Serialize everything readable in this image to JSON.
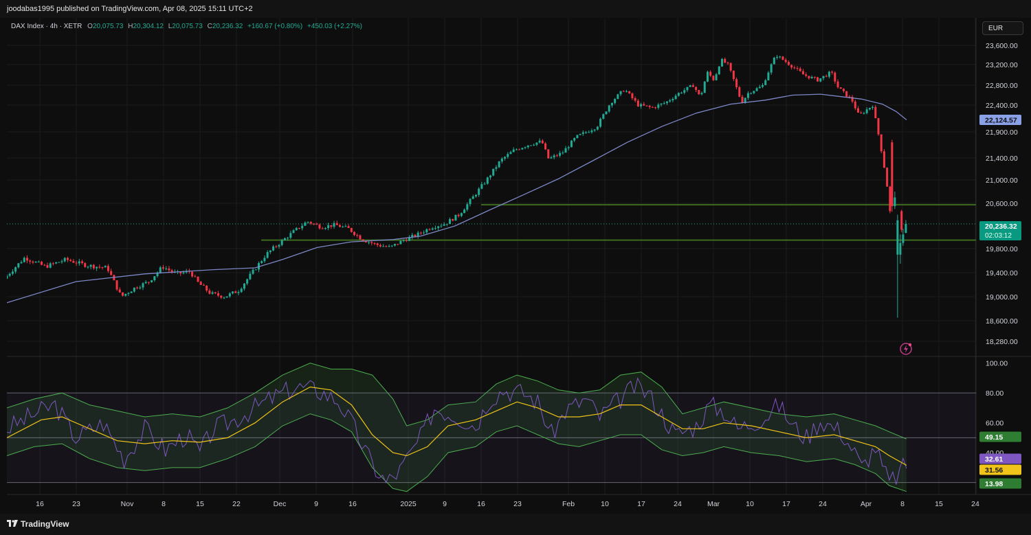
{
  "header": {
    "published_text": "joodabas1995 published on TradingView.com, Apr 08, 2025 15:11 UTC+2"
  },
  "legend": {
    "symbol": "DAX Index · 4h · XETR",
    "open_label": "O",
    "open": "20,075.73",
    "high_label": "H",
    "high": "20,304.12",
    "low_label": "L",
    "low": "20,075.73",
    "close_label": "C",
    "close": "20,236.32",
    "change": "+160.67 (+0.80%)",
    "change2": "+450.03 (+2.27%)"
  },
  "currency_button": "EUR",
  "footer": {
    "logo_text": "TradingView"
  },
  "colors": {
    "up": "#22ab94",
    "down": "#f23645",
    "ma": "#7e88c8",
    "rsi": "#7e57c2",
    "rsi_ma": "#f0c419",
    "band": "#4caf50",
    "support": "#3d6b1f"
  },
  "chart_data": [
    {
      "type": "candlestick",
      "title": "DAX Index · 4h · XETR",
      "x_tick_labels": [
        "16",
        "23",
        "Nov",
        "8",
        "15",
        "22",
        "Dec",
        "9",
        "16",
        "2025",
        "9",
        "16",
        "23",
        "Feb",
        "10",
        "17",
        "24",
        "Mar",
        "10",
        "17",
        "24",
        "Apr",
        "8",
        "15",
        "24"
      ],
      "y_tick_labels": [
        "23,600.00",
        "23,200.00",
        "22,800.00",
        "22,400.00",
        "21,900.00",
        "21,400.00",
        "21,000.00",
        "20,600.00",
        "19,800.00",
        "19,400.00",
        "19,000.00",
        "18,600.00",
        "18,280.00"
      ],
      "y_ticks": [
        23600,
        23200,
        22800,
        22400,
        21900,
        21400,
        21000,
        20600,
        19800,
        19400,
        19000,
        18600,
        18280
      ],
      "price_badges": [
        {
          "label": "22,124.57",
          "value": 22124.57,
          "kind": "moving-average"
        },
        {
          "label": "20,236.32",
          "value": 20236.32,
          "kind": "last-price"
        }
      ],
      "countdown": "02:03:12",
      "horizontal_levels": [
        20575,
        19950
      ],
      "price_path": [
        [
          0,
          19300
        ],
        [
          3,
          19650
        ],
        [
          6,
          19500
        ],
        [
          9,
          19620
        ],
        [
          12,
          19520
        ],
        [
          15,
          19480
        ],
        [
          17,
          19000
        ],
        [
          19,
          19150
        ],
        [
          21,
          19250
        ],
        [
          23,
          19500
        ],
        [
          25,
          19380
        ],
        [
          27,
          19420
        ],
        [
          28,
          19250
        ],
        [
          30,
          19050
        ],
        [
          32,
          19000
        ],
        [
          34,
          19100
        ],
        [
          36,
          19400
        ],
        [
          38,
          19700
        ],
        [
          40,
          19900
        ],
        [
          42,
          20100
        ],
        [
          44,
          20280
        ],
        [
          46,
          20180
        ],
        [
          48,
          20220
        ],
        [
          50,
          20150
        ],
        [
          52,
          19960
        ],
        [
          54,
          19870
        ],
        [
          56,
          19820
        ],
        [
          58,
          19950
        ],
        [
          60,
          20050
        ],
        [
          62,
          20180
        ],
        [
          64,
          20240
        ],
        [
          66,
          20400
        ],
        [
          68,
          20700
        ],
        [
          70,
          21000
        ],
        [
          72,
          21350
        ],
        [
          74,
          21550
        ],
        [
          76,
          21650
        ],
        [
          78,
          21720
        ],
        [
          79,
          21380
        ],
        [
          81,
          21500
        ],
        [
          83,
          21800
        ],
        [
          86,
          22000
        ],
        [
          88,
          22450
        ],
        [
          90,
          22720
        ],
        [
          92,
          22400
        ],
        [
          94,
          22350
        ],
        [
          96,
          22450
        ],
        [
          98,
          22650
        ],
        [
          100,
          22800
        ],
        [
          101,
          22550
        ],
        [
          102,
          23050
        ],
        [
          103,
          22900
        ],
        [
          104,
          23300
        ],
        [
          105,
          23200
        ],
        [
          106,
          22850
        ],
        [
          107,
          22450
        ],
        [
          108,
          22650
        ],
        [
          110,
          22780
        ],
        [
          111,
          23100
        ],
        [
          112,
          23400
        ],
        [
          114,
          23200
        ],
        [
          116,
          23000
        ],
        [
          118,
          22900
        ],
        [
          120,
          23050
        ],
        [
          121,
          22750
        ],
        [
          123,
          22500
        ],
        [
          124,
          22200
        ],
        [
          126,
          22400
        ],
        [
          127,
          21750
        ],
        [
          128,
          21000
        ],
        [
          128.5,
          20500
        ],
        [
          129.2,
          18700
        ],
        [
          129.7,
          19900
        ],
        [
          130.5,
          20236
        ]
      ],
      "moving_average_path": [
        [
          0,
          18900
        ],
        [
          10,
          19250
        ],
        [
          20,
          19380
        ],
        [
          30,
          19450
        ],
        [
          36,
          19480
        ],
        [
          40,
          19620
        ],
        [
          45,
          19820
        ],
        [
          50,
          19920
        ],
        [
          56,
          19960
        ],
        [
          60,
          20020
        ],
        [
          65,
          20200
        ],
        [
          70,
          20480
        ],
        [
          75,
          20750
        ],
        [
          80,
          21020
        ],
        [
          85,
          21350
        ],
        [
          90,
          21700
        ],
        [
          95,
          22000
        ],
        [
          100,
          22250
        ],
        [
          105,
          22420
        ],
        [
          110,
          22500
        ],
        [
          114,
          22600
        ],
        [
          118,
          22620
        ],
        [
          121,
          22570
        ],
        [
          124,
          22520
        ],
        [
          127,
          22420
        ],
        [
          129,
          22280
        ],
        [
          130.5,
          22124.57
        ]
      ]
    },
    {
      "type": "line",
      "title": "RSI",
      "y_tick_labels": [
        "100.00",
        "80.00",
        "60.00",
        "40.00",
        "20.00"
      ],
      "y_ticks": [
        100,
        80,
        60,
        40,
        20
      ],
      "ylim": [
        12,
        104
      ],
      "badges": [
        {
          "label": "49.15",
          "value": 49.15,
          "series": "upper band"
        },
        {
          "label": "32.61",
          "value": 32.61,
          "series": "rsi"
        },
        {
          "label": "31.56",
          "value": 31.56,
          "series": "rsi ma"
        },
        {
          "label": "13.98",
          "value": 13.98,
          "series": "lower band"
        }
      ],
      "levels": [
        80,
        50,
        20
      ],
      "series": [
        {
          "key": "rsi",
          "values": [
            [
              0,
              56
            ],
            [
              4,
              66
            ],
            [
              7,
              72
            ],
            [
              10,
              50
            ],
            [
              14,
              60
            ],
            [
              17,
              36
            ],
            [
              20,
              56
            ],
            [
              23,
              42
            ],
            [
              26,
              52
            ],
            [
              28,
              40
            ],
            [
              30,
              56
            ],
            [
              33,
              62
            ],
            [
              36,
              70
            ],
            [
              39,
              78
            ],
            [
              42,
              84
            ],
            [
              45,
              82
            ],
            [
              48,
              75
            ],
            [
              50,
              60
            ],
            [
              53,
              32
            ],
            [
              55,
              20
            ],
            [
              57,
              28
            ],
            [
              60,
              50
            ],
            [
              62,
              70
            ],
            [
              65,
              65
            ],
            [
              68,
              58
            ],
            [
              70,
              76
            ],
            [
              72,
              82
            ],
            [
              75,
              80
            ],
            [
              77,
              74
            ],
            [
              79,
              52
            ],
            [
              81,
              68
            ],
            [
              84,
              76
            ],
            [
              86,
              64
            ],
            [
              89,
              76
            ],
            [
              91,
              84
            ],
            [
              93,
              80
            ],
            [
              95,
              66
            ],
            [
              97,
              52
            ],
            [
              100,
              58
            ],
            [
              102,
              72
            ],
            [
              104,
              68
            ],
            [
              106,
              56
            ],
            [
              108,
              60
            ],
            [
              110,
              64
            ],
            [
              112,
              72
            ],
            [
              114,
              58
            ],
            [
              116,
              50
            ],
            [
              118,
              62
            ],
            [
              121,
              54
            ],
            [
              123,
              40
            ],
            [
              124,
              30
            ],
            [
              126,
              44
            ],
            [
              127,
              30
            ],
            [
              128,
              20
            ],
            [
              129,
              24
            ],
            [
              130.5,
              32.61
            ]
          ]
        },
        {
          "key": "rsi_ma",
          "values": [
            [
              0,
              50
            ],
            [
              5,
              62
            ],
            [
              8,
              64
            ],
            [
              12,
              56
            ],
            [
              16,
              48
            ],
            [
              20,
              46
            ],
            [
              24,
              48
            ],
            [
              28,
              47
            ],
            [
              32,
              50
            ],
            [
              36,
              60
            ],
            [
              40,
              74
            ],
            [
              44,
              84
            ],
            [
              47,
              82
            ],
            [
              50,
              72
            ],
            [
              53,
              52
            ],
            [
              56,
              40
            ],
            [
              58,
              38
            ],
            [
              61,
              44
            ],
            [
              64,
              58
            ],
            [
              68,
              62
            ],
            [
              71,
              68
            ],
            [
              74,
              74
            ],
            [
              77,
              70
            ],
            [
              80,
              64
            ],
            [
              83,
              64
            ],
            [
              86,
              66
            ],
            [
              89,
              72
            ],
            [
              92,
              72
            ],
            [
              95,
              64
            ],
            [
              98,
              56
            ],
            [
              101,
              56
            ],
            [
              104,
              60
            ],
            [
              108,
              58
            ],
            [
              112,
              54
            ],
            [
              116,
              50
            ],
            [
              120,
              52
            ],
            [
              123,
              48
            ],
            [
              126,
              44
            ],
            [
              128,
              38
            ],
            [
              130.5,
              31.56
            ]
          ]
        },
        {
          "key": "upper_band",
          "values": [
            [
              0,
              70
            ],
            [
              4,
              76
            ],
            [
              8,
              80
            ],
            [
              12,
              72
            ],
            [
              16,
              68
            ],
            [
              20,
              64
            ],
            [
              24,
              66
            ],
            [
              28,
              64
            ],
            [
              32,
              70
            ],
            [
              36,
              80
            ],
            [
              40,
              92
            ],
            [
              44,
              100
            ],
            [
              47,
              96
            ],
            [
              50,
              96
            ],
            [
              53,
              92
            ],
            [
              56,
              76
            ],
            [
              58,
              58
            ],
            [
              61,
              62
            ],
            [
              64,
              72
            ],
            [
              68,
              74
            ],
            [
              71,
              86
            ],
            [
              74,
              92
            ],
            [
              77,
              88
            ],
            [
              80,
              82
            ],
            [
              83,
              80
            ],
            [
              86,
              82
            ],
            [
              89,
              92
            ],
            [
              92,
              94
            ],
            [
              95,
              84
            ],
            [
              98,
              66
            ],
            [
              101,
              70
            ],
            [
              104,
              74
            ],
            [
              108,
              70
            ],
            [
              112,
              66
            ],
            [
              116,
              64
            ],
            [
              120,
              66
            ],
            [
              123,
              62
            ],
            [
              126,
              58
            ],
            [
              128,
              54
            ],
            [
              130.5,
              49.15
            ]
          ]
        },
        {
          "key": "lower_band",
          "values": [
            [
              0,
              38
            ],
            [
              4,
              44
            ],
            [
              8,
              46
            ],
            [
              12,
              36
            ],
            [
              16,
              30
            ],
            [
              20,
              28
            ],
            [
              24,
              30
            ],
            [
              28,
              30
            ],
            [
              32,
              36
            ],
            [
              36,
              44
            ],
            [
              40,
              58
            ],
            [
              44,
              66
            ],
            [
              47,
              62
            ],
            [
              50,
              54
            ],
            [
              53,
              30
            ],
            [
              56,
              16
            ],
            [
              58,
              14
            ],
            [
              61,
              24
            ],
            [
              64,
              40
            ],
            [
              68,
              44
            ],
            [
              71,
              54
            ],
            [
              74,
              58
            ],
            [
              77,
              52
            ],
            [
              80,
              46
            ],
            [
              83,
              44
            ],
            [
              86,
              48
            ],
            [
              89,
              52
            ],
            [
              92,
              52
            ],
            [
              95,
              42
            ],
            [
              98,
              38
            ],
            [
              101,
              40
            ],
            [
              104,
              44
            ],
            [
              108,
              40
            ],
            [
              112,
              38
            ],
            [
              116,
              34
            ],
            [
              120,
              36
            ],
            [
              123,
              32
            ],
            [
              126,
              26
            ],
            [
              128,
              18
            ],
            [
              130.5,
              13.98
            ]
          ]
        }
      ]
    }
  ]
}
